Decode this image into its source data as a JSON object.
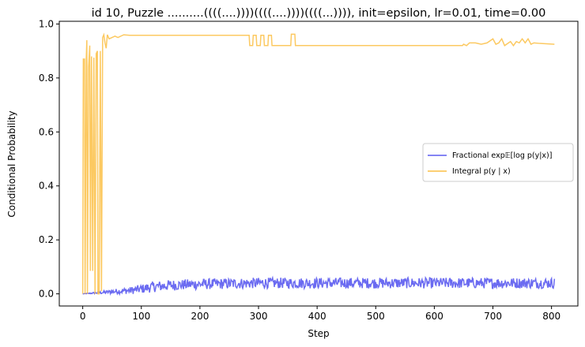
{
  "chart_data": {
    "type": "line",
    "title": "id 10, Puzzle ..........((((....))))((((....))))((((...)))), init=epsilon, lr=0.01, time=0.00",
    "xlabel": "Step",
    "ylabel": "Conditional Probability",
    "xlim": [
      -40,
      845
    ],
    "ylim": [
      -0.045,
      1.01
    ],
    "xticks": [
      0,
      100,
      200,
      300,
      400,
      500,
      600,
      700,
      800
    ],
    "yticks": [
      0.0,
      0.2,
      0.4,
      0.6,
      0.8,
      1.0
    ],
    "xtick_labels": [
      "0",
      "100",
      "200",
      "300",
      "400",
      "500",
      "600",
      "700",
      "800"
    ],
    "ytick_labels": [
      "0.0",
      "0.2",
      "0.4",
      "0.6",
      "0.8",
      "1.0"
    ],
    "grid": false,
    "legend_position": "center-right",
    "series": [
      {
        "name": "Fractional exp𝔼[log p(y|x)]",
        "color": "#5b5bf0",
        "n_steps": 805,
        "keypoints": [
          [
            0,
            0.0
          ],
          [
            20,
            0.003
          ],
          [
            40,
            0.006
          ],
          [
            60,
            0.01
          ],
          [
            80,
            0.012
          ],
          [
            100,
            0.018
          ],
          [
            120,
            0.026
          ],
          [
            150,
            0.032
          ],
          [
            200,
            0.036
          ],
          [
            300,
            0.04
          ],
          [
            400,
            0.04
          ],
          [
            500,
            0.04
          ],
          [
            600,
            0.04
          ],
          [
            700,
            0.04
          ],
          [
            805,
            0.04
          ]
        ],
        "noise_amplitude": 0.02,
        "max": 0.085
      },
      {
        "name": "Integral p(y | x)",
        "color": "#fbbf45",
        "points": [
          [
            0,
            0.0
          ],
          [
            1,
            0.87
          ],
          [
            3,
            0.87
          ],
          [
            4,
            0.0
          ],
          [
            6,
            0.87
          ],
          [
            7,
            0.94
          ],
          [
            8,
            0.0
          ],
          [
            10,
            0.84
          ],
          [
            12,
            0.92
          ],
          [
            13,
            0.085
          ],
          [
            15,
            0.88
          ],
          [
            17,
            0.085
          ],
          [
            19,
            0.875
          ],
          [
            21,
            0.0
          ],
          [
            23,
            0.89
          ],
          [
            25,
            0.9
          ],
          [
            26,
            0.0
          ],
          [
            28,
            0.0
          ],
          [
            30,
            0.9
          ],
          [
            32,
            0.01
          ],
          [
            34,
            0.95
          ],
          [
            36,
            0.96
          ],
          [
            38,
            0.93
          ],
          [
            40,
            0.91
          ],
          [
            42,
            0.96
          ],
          [
            45,
            0.945
          ],
          [
            50,
            0.95
          ],
          [
            55,
            0.955
          ],
          [
            60,
            0.95
          ],
          [
            70,
            0.96
          ],
          [
            80,
            0.958
          ],
          [
            100,
            0.958
          ],
          [
            150,
            0.958
          ],
          [
            200,
            0.958
          ],
          [
            284,
            0.958
          ],
          [
            285,
            0.92
          ],
          [
            290,
            0.92
          ],
          [
            291,
            0.958
          ],
          [
            296,
            0.958
          ],
          [
            297,
            0.92
          ],
          [
            303,
            0.92
          ],
          [
            304,
            0.958
          ],
          [
            309,
            0.958
          ],
          [
            310,
            0.92
          ],
          [
            316,
            0.92
          ],
          [
            317,
            0.958
          ],
          [
            322,
            0.958
          ],
          [
            323,
            0.92
          ],
          [
            355,
            0.92
          ],
          [
            356,
            0.962
          ],
          [
            362,
            0.962
          ],
          [
            363,
            0.92
          ],
          [
            400,
            0.92
          ],
          [
            500,
            0.92
          ],
          [
            600,
            0.92
          ],
          [
            648,
            0.92
          ],
          [
            650,
            0.925
          ],
          [
            655,
            0.92
          ],
          [
            660,
            0.93
          ],
          [
            670,
            0.93
          ],
          [
            680,
            0.925
          ],
          [
            690,
            0.93
          ],
          [
            700,
            0.945
          ],
          [
            705,
            0.925
          ],
          [
            710,
            0.93
          ],
          [
            715,
            0.945
          ],
          [
            720,
            0.92
          ],
          [
            730,
            0.935
          ],
          [
            735,
            0.92
          ],
          [
            740,
            0.935
          ],
          [
            745,
            0.93
          ],
          [
            750,
            0.945
          ],
          [
            755,
            0.93
          ],
          [
            760,
            0.945
          ],
          [
            765,
            0.925
          ],
          [
            770,
            0.93
          ],
          [
            780,
            0.928
          ],
          [
            805,
            0.925
          ]
        ]
      }
    ]
  }
}
